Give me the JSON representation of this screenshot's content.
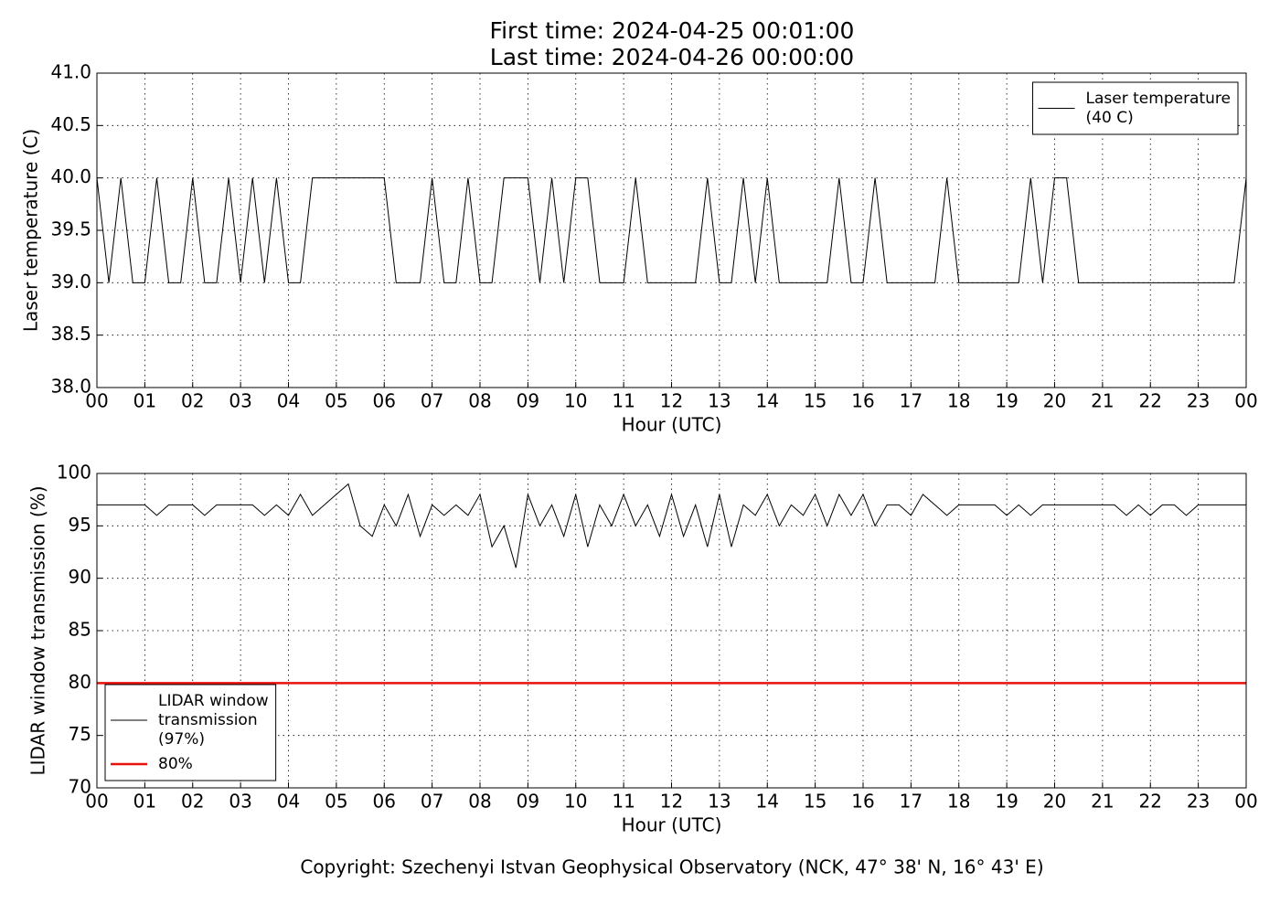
{
  "title": [
    "First time: 2024-04-25 00:01:00",
    "Last time: 2024-04-26 00:00:00"
  ],
  "footer": "Copyright: Szechenyi Istvan Geophysical Observatory (NCK, 47° 38' N, 16° 43' E)",
  "chart_data": [
    {
      "type": "line",
      "xlabel": "Hour (UTC)",
      "ylabel": "Laser temperature (C)",
      "xlim": [
        0,
        24
      ],
      "xticks": [
        {
          "value": 0,
          "label": "00"
        },
        {
          "value": 1,
          "label": "01"
        },
        {
          "value": 2,
          "label": "02"
        },
        {
          "value": 3,
          "label": "03"
        },
        {
          "value": 4,
          "label": "04"
        },
        {
          "value": 5,
          "label": "05"
        },
        {
          "value": 6,
          "label": "06"
        },
        {
          "value": 7,
          "label": "07"
        },
        {
          "value": 8,
          "label": "08"
        },
        {
          "value": 9,
          "label": "09"
        },
        {
          "value": 10,
          "label": "10"
        },
        {
          "value": 11,
          "label": "11"
        },
        {
          "value": 12,
          "label": "12"
        },
        {
          "value": 13,
          "label": "13"
        },
        {
          "value": 14,
          "label": "14"
        },
        {
          "value": 15,
          "label": "15"
        },
        {
          "value": 16,
          "label": "16"
        },
        {
          "value": 17,
          "label": "17"
        },
        {
          "value": 18,
          "label": "18"
        },
        {
          "value": 19,
          "label": "19"
        },
        {
          "value": 20,
          "label": "20"
        },
        {
          "value": 21,
          "label": "21"
        },
        {
          "value": 22,
          "label": "22"
        },
        {
          "value": 23,
          "label": "23"
        },
        {
          "value": 24,
          "label": "00"
        }
      ],
      "ylim": [
        38,
        41
      ],
      "yticks": [
        {
          "value": 38,
          "label": "38.0"
        },
        38.5,
        {
          "value": 39,
          "label": "39.0"
        },
        39.5,
        {
          "value": 40,
          "label": "40.0"
        },
        40.5,
        {
          "value": 41,
          "label": "41.0"
        }
      ],
      "grid": true,
      "legend": "upper right",
      "x": [
        0,
        0.25,
        0.5,
        0.75,
        1,
        1.25,
        1.5,
        1.75,
        2,
        2.25,
        2.5,
        2.75,
        3,
        3.25,
        3.5,
        3.75,
        4,
        4.25,
        4.5,
        4.75,
        5,
        5.25,
        5.5,
        5.75,
        6,
        6.25,
        6.5,
        6.75,
        7,
        7.25,
        7.5,
        7.75,
        8,
        8.25,
        8.5,
        8.75,
        9,
        9.25,
        9.5,
        9.75,
        10,
        10.25,
        10.5,
        10.75,
        11,
        11.25,
        11.5,
        11.75,
        12,
        12.25,
        12.5,
        12.75,
        13,
        13.25,
        13.5,
        13.75,
        14,
        14.25,
        14.5,
        14.75,
        15,
        15.25,
        15.5,
        15.75,
        16,
        16.25,
        16.5,
        16.75,
        17,
        17.25,
        17.5,
        17.75,
        18,
        18.25,
        18.5,
        18.75,
        19,
        19.25,
        19.5,
        19.75,
        20,
        20.25,
        20.5,
        20.75,
        21,
        21.25,
        21.5,
        21.75,
        22,
        22.25,
        22.5,
        22.75,
        23,
        23.25,
        23.5,
        23.75,
        24
      ],
      "series": [
        {
          "name": [
            "Laser temperature",
            "(40 C)"
          ],
          "color": "#000000",
          "width": 1,
          "values": [
            40,
            39,
            40,
            39,
            39,
            40,
            39,
            39,
            40,
            39,
            39,
            40,
            39,
            40,
            39,
            40,
            39,
            39,
            40,
            40,
            40,
            40,
            40,
            40,
            40,
            39,
            39,
            39,
            40,
            39,
            39,
            40,
            39,
            39,
            40,
            40,
            40,
            39,
            40,
            39,
            40,
            40,
            39,
            39,
            39,
            40,
            39,
            39,
            39,
            39,
            39,
            40,
            39,
            39,
            40,
            39,
            40,
            39,
            39,
            39,
            39,
            39,
            40,
            39,
            39,
            40,
            39,
            39,
            39,
            39,
            39,
            40,
            39,
            39,
            39,
            39,
            39,
            39,
            40,
            39,
            40,
            40,
            39,
            39,
            39,
            39,
            39,
            39,
            39,
            39,
            39,
            39,
            39,
            39,
            39,
            39,
            40
          ]
        }
      ]
    },
    {
      "type": "line",
      "xlabel": "Hour (UTC)",
      "ylabel": "LIDAR window transmission (%)",
      "xlim": [
        0,
        24
      ],
      "xticks": [
        {
          "value": 0,
          "label": "00"
        },
        {
          "value": 1,
          "label": "01"
        },
        {
          "value": 2,
          "label": "02"
        },
        {
          "value": 3,
          "label": "03"
        },
        {
          "value": 4,
          "label": "04"
        },
        {
          "value": 5,
          "label": "05"
        },
        {
          "value": 6,
          "label": "06"
        },
        {
          "value": 7,
          "label": "07"
        },
        {
          "value": 8,
          "label": "08"
        },
        {
          "value": 9,
          "label": "09"
        },
        {
          "value": 10,
          "label": "10"
        },
        {
          "value": 11,
          "label": "11"
        },
        {
          "value": 12,
          "label": "12"
        },
        {
          "value": 13,
          "label": "13"
        },
        {
          "value": 14,
          "label": "14"
        },
        {
          "value": 15,
          "label": "15"
        },
        {
          "value": 16,
          "label": "16"
        },
        {
          "value": 17,
          "label": "17"
        },
        {
          "value": 18,
          "label": "18"
        },
        {
          "value": 19,
          "label": "19"
        },
        {
          "value": 20,
          "label": "20"
        },
        {
          "value": 21,
          "label": "21"
        },
        {
          "value": 22,
          "label": "22"
        },
        {
          "value": 23,
          "label": "23"
        },
        {
          "value": 24,
          "label": "00"
        }
      ],
      "ylim": [
        70,
        100
      ],
      "yticks": [
        70,
        75,
        80,
        85,
        90,
        95,
        100
      ],
      "grid": true,
      "legend": "lower left",
      "x": [
        0,
        0.25,
        0.5,
        0.75,
        1,
        1.25,
        1.5,
        1.75,
        2,
        2.25,
        2.5,
        2.75,
        3,
        3.25,
        3.5,
        3.75,
        4,
        4.25,
        4.5,
        4.75,
        5,
        5.25,
        5.5,
        5.75,
        6,
        6.25,
        6.5,
        6.75,
        7,
        7.25,
        7.5,
        7.75,
        8,
        8.25,
        8.5,
        8.75,
        9,
        9.25,
        9.5,
        9.75,
        10,
        10.25,
        10.5,
        10.75,
        11,
        11.25,
        11.5,
        11.75,
        12,
        12.25,
        12.5,
        12.75,
        13,
        13.25,
        13.5,
        13.75,
        14,
        14.25,
        14.5,
        14.75,
        15,
        15.25,
        15.5,
        15.75,
        16,
        16.25,
        16.5,
        16.75,
        17,
        17.25,
        17.5,
        17.75,
        18,
        18.25,
        18.5,
        18.75,
        19,
        19.25,
        19.5,
        19.75,
        20,
        20.25,
        20.5,
        20.75,
        21,
        21.25,
        21.5,
        21.75,
        22,
        22.25,
        22.5,
        22.75,
        23,
        23.25,
        23.5,
        23.75,
        24
      ],
      "series": [
        {
          "name": [
            "LIDAR window",
            "transmission",
            "(97%)"
          ],
          "color": "#000000",
          "width": 1,
          "values": [
            97,
            97,
            97,
            97,
            97,
            96,
            97,
            97,
            97,
            96,
            97,
            97,
            97,
            97,
            96,
            97,
            96,
            98,
            96,
            97,
            98,
            99,
            95,
            94,
            97,
            95,
            98,
            94,
            97,
            96,
            97,
            96,
            98,
            93,
            95,
            91,
            98,
            95,
            97,
            94,
            98,
            93,
            97,
            95,
            98,
            95,
            97,
            94,
            98,
            94,
            97,
            93,
            98,
            93,
            97,
            96,
            98,
            95,
            97,
            96,
            98,
            95,
            98,
            96,
            98,
            95,
            97,
            97,
            96,
            98,
            97,
            96,
            97,
            97,
            97,
            97,
            96,
            97,
            96,
            97,
            97,
            97,
            97,
            97,
            97,
            97,
            96,
            97,
            96,
            97,
            97,
            96,
            97,
            97,
            97,
            97,
            97
          ]
        },
        {
          "name": [
            "80%"
          ],
          "color": "#e8120c",
          "width": 2.5,
          "x": [
            0,
            24
          ],
          "values": [
            80,
            80
          ]
        }
      ]
    }
  ]
}
